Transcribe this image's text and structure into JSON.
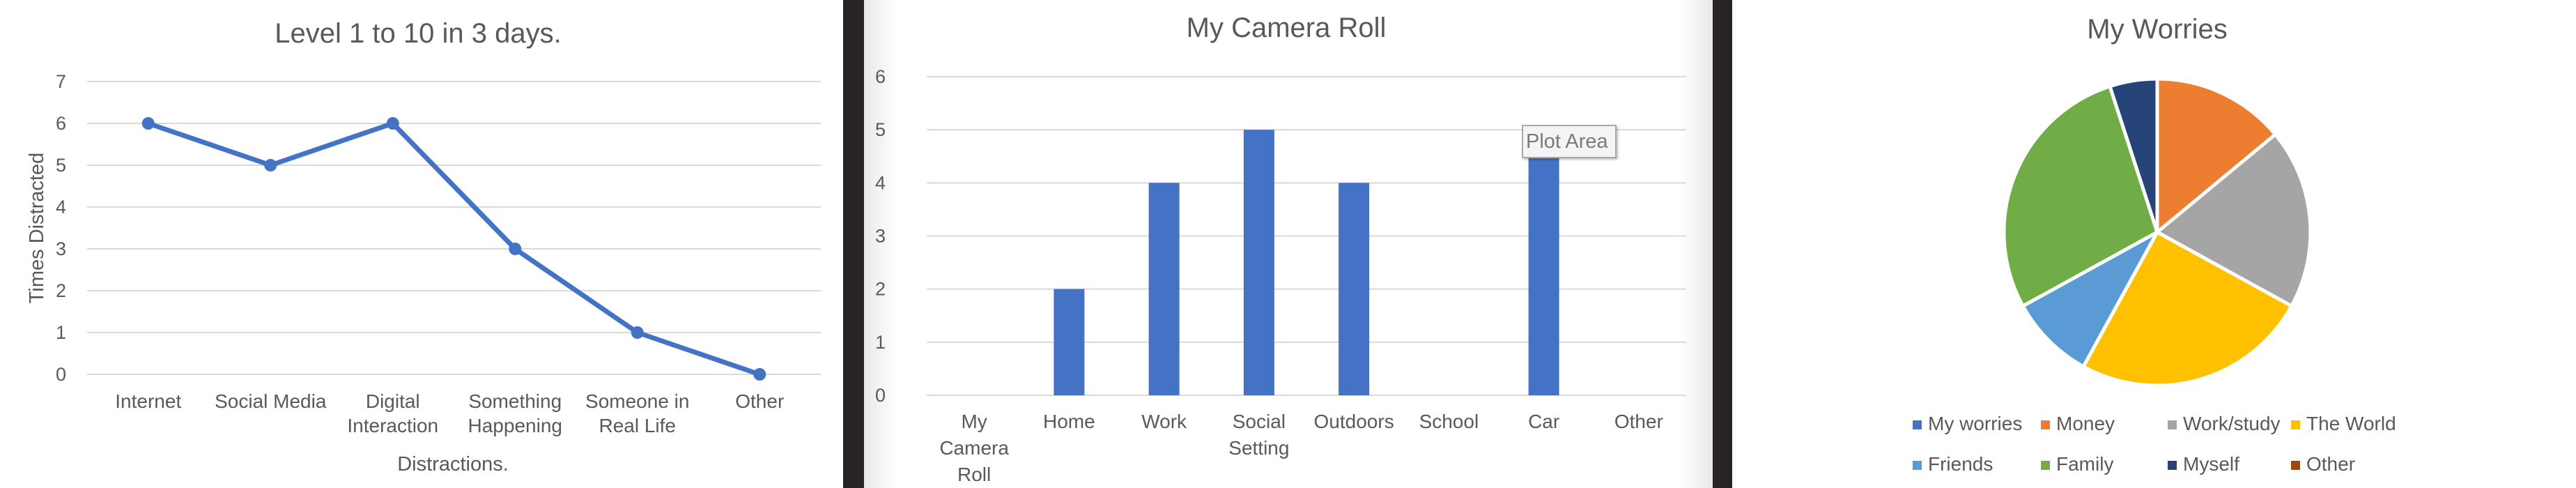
{
  "chart_data": [
    {
      "type": "line",
      "title": "Level 1 to 10 in 3 days.",
      "xlabel": "Distractions.",
      "ylabel": "Times Distracted",
      "categories": [
        [
          "Internet"
        ],
        [
          "Social Media"
        ],
        [
          "Digital",
          "Interaction"
        ],
        [
          "Something",
          "Happening"
        ],
        [
          "Someone in",
          "Real Life"
        ],
        [
          "Other"
        ]
      ],
      "values": [
        6,
        5,
        6,
        3,
        1,
        0
      ],
      "ylim": [
        0,
        7
      ],
      "yticks": [
        0,
        1,
        2,
        3,
        4,
        5,
        6,
        7
      ],
      "grid": true,
      "color": "#4472c4"
    },
    {
      "type": "bar",
      "title": "My Camera Roll",
      "categories": [
        [
          "My",
          "Camera",
          "Roll"
        ],
        [
          "Home"
        ],
        [
          "Work"
        ],
        [
          "Social",
          "Setting"
        ],
        [
          "Outdoors"
        ],
        [
          "School"
        ],
        [
          "Car"
        ],
        [
          "Other"
        ]
      ],
      "values": [
        0,
        2,
        4,
        5,
        4,
        0,
        5,
        0
      ],
      "ylim": [
        0,
        6
      ],
      "yticks": [
        0,
        1,
        2,
        3,
        4,
        5,
        6
      ],
      "grid": true,
      "color": "#4472c4",
      "tooltip": "Plot Area"
    },
    {
      "type": "pie",
      "title": "My Worries",
      "legend_position": "bottom",
      "slices": [
        {
          "label": "My worries",
          "value": 0,
          "color": "#4472c4"
        },
        {
          "label": "Money",
          "value": 14,
          "color": "#ed7d31"
        },
        {
          "label": "Work/study",
          "value": 19,
          "color": "#a5a5a5"
        },
        {
          "label": "The World",
          "value": 25,
          "color": "#ffc000"
        },
        {
          "label": "Friends",
          "value": 9,
          "color": "#5b9bd5"
        },
        {
          "label": "Family",
          "value": 28,
          "color": "#70ad47"
        },
        {
          "label": "Myself",
          "value": 5,
          "color": "#264478"
        },
        {
          "label": "Other",
          "value": 0,
          "color": "#9e480e"
        }
      ]
    }
  ]
}
